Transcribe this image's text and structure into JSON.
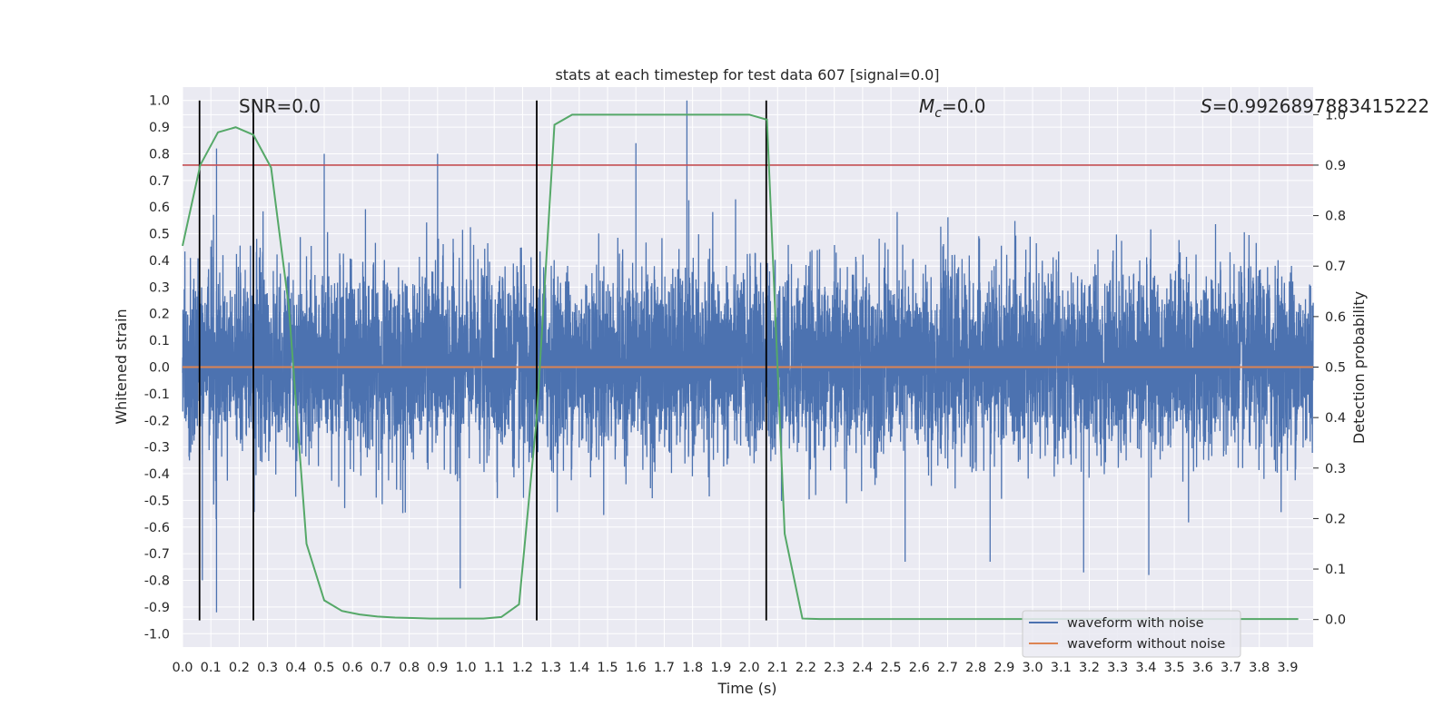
{
  "chart_data": {
    "type": "line",
    "title": "stats at each timestep for test data 607 [signal=0.0]",
    "xlabel": "Time (s)",
    "ylabel": "Whitened strain",
    "y2label": "Detection probability",
    "xlim": [
      0.0,
      3.99
    ],
    "ylim": [
      -1.05,
      1.05
    ],
    "y2lim": [
      -0.0545,
      1.0545
    ],
    "x_ticks": [
      "0.0",
      "0.1",
      "0.2",
      "0.3",
      "0.4",
      "0.5",
      "0.6",
      "0.7",
      "0.8",
      "0.9",
      "1.0",
      "1.1",
      "1.2",
      "1.3",
      "1.4",
      "1.5",
      "1.6",
      "1.7",
      "1.8",
      "1.9",
      "2.0",
      "2.1",
      "2.2",
      "2.3",
      "2.4",
      "2.5",
      "2.6",
      "2.7",
      "2.8",
      "2.9",
      "3.0",
      "3.1",
      "3.2",
      "3.3",
      "3.4",
      "3.5",
      "3.6",
      "3.7",
      "3.8",
      "3.9"
    ],
    "y_ticks": [
      "1.0",
      "0.9",
      "0.8",
      "0.7",
      "0.6",
      "0.5",
      "0.4",
      "0.3",
      "0.2",
      "0.1",
      "0.0",
      "-0.1",
      "-0.2",
      "-0.3",
      "-0.4",
      "-0.5",
      "-0.6",
      "-0.7",
      "-0.8",
      "-0.9",
      "-1.0"
    ],
    "y2_ticks": [
      "1.0",
      "0.9",
      "0.8",
      "0.7",
      "0.6",
      "0.5",
      "0.4",
      "0.3",
      "0.2",
      "0.1",
      "0.0"
    ],
    "annotations": {
      "snr": "SNR=0.0",
      "mc": "$M_c$=0.0",
      "mc_main": "M",
      "mc_sub": "c",
      "mc_rest": "=0.0",
      "s_sym": "S",
      "s_val": "=0.9926897883415222"
    },
    "grid": true,
    "legend_position": "lower-right",
    "series": [
      {
        "name": "waveform with noise",
        "color": "#4c72b0",
        "kind": "noise",
        "sample_rate": 2048,
        "peak_envelope": [
          [
            0.0,
            0.55
          ],
          [
            0.05,
            0.55
          ],
          [
            0.1,
            0.6
          ],
          [
            0.12,
            0.82
          ],
          [
            0.15,
            0.5
          ],
          [
            0.2,
            0.45
          ],
          [
            0.25,
            0.6
          ],
          [
            0.3,
            0.72
          ],
          [
            0.35,
            0.68
          ],
          [
            0.4,
            0.55
          ],
          [
            0.45,
            0.58
          ],
          [
            0.5,
            0.8
          ],
          [
            0.55,
            0.55
          ],
          [
            0.6,
            0.72
          ],
          [
            0.65,
            0.6
          ],
          [
            0.7,
            0.68
          ],
          [
            0.75,
            0.75
          ],
          [
            0.8,
            0.6
          ],
          [
            0.85,
            0.5
          ],
          [
            0.9,
            0.8
          ],
          [
            0.95,
            0.55
          ],
          [
            1.0,
            0.6
          ],
          [
            1.05,
            0.6
          ],
          [
            1.1,
            0.55
          ],
          [
            1.15,
            0.5
          ],
          [
            1.2,
            0.45
          ],
          [
            1.25,
            0.42
          ],
          [
            1.3,
            0.6
          ],
          [
            1.35,
            0.62
          ],
          [
            1.4,
            0.65
          ],
          [
            1.45,
            0.68
          ],
          [
            1.5,
            0.62
          ],
          [
            1.55,
            0.7
          ],
          [
            1.6,
            0.84
          ],
          [
            1.65,
            0.6
          ],
          [
            1.7,
            0.72
          ],
          [
            1.75,
            0.7
          ],
          [
            1.78,
            1.0
          ],
          [
            1.8,
            0.72
          ],
          [
            1.85,
            0.7
          ],
          [
            1.9,
            0.66
          ],
          [
            1.95,
            0.72
          ],
          [
            2.0,
            0.68
          ],
          [
            2.05,
            0.75
          ],
          [
            2.1,
            0.7
          ],
          [
            2.15,
            0.68
          ],
          [
            2.2,
            0.65
          ],
          [
            2.25,
            0.62
          ],
          [
            2.3,
            0.6
          ],
          [
            2.4,
            0.62
          ],
          [
            2.5,
            0.65
          ],
          [
            2.6,
            0.58
          ],
          [
            2.7,
            0.7
          ],
          [
            2.8,
            0.62
          ],
          [
            2.9,
            0.55
          ],
          [
            3.0,
            0.62
          ],
          [
            3.1,
            0.68
          ],
          [
            3.2,
            0.6
          ],
          [
            3.3,
            0.58
          ],
          [
            3.4,
            0.66
          ],
          [
            3.5,
            0.7
          ],
          [
            3.6,
            0.62
          ],
          [
            3.7,
            0.72
          ],
          [
            3.8,
            0.6
          ],
          [
            3.9,
            0.62
          ],
          [
            3.99,
            0.5
          ]
        ],
        "trough_envelope": [
          [
            0.0,
            -0.35
          ],
          [
            0.05,
            -0.4
          ],
          [
            0.07,
            -0.8
          ],
          [
            0.1,
            -0.75
          ],
          [
            0.12,
            -0.92
          ],
          [
            0.15,
            -0.72
          ],
          [
            0.2,
            -0.5
          ],
          [
            0.25,
            -0.55
          ],
          [
            0.3,
            -0.62
          ],
          [
            0.35,
            -0.58
          ],
          [
            0.4,
            -0.6
          ],
          [
            0.45,
            -0.72
          ],
          [
            0.5,
            -0.55
          ],
          [
            0.55,
            -0.58
          ],
          [
            0.6,
            -0.55
          ],
          [
            0.65,
            -0.5
          ],
          [
            0.7,
            -0.55
          ],
          [
            0.75,
            -0.6
          ],
          [
            0.8,
            -0.58
          ],
          [
            0.85,
            -0.55
          ],
          [
            0.9,
            -0.65
          ],
          [
            0.98,
            -0.83
          ],
          [
            1.0,
            -0.55
          ],
          [
            1.05,
            -0.55
          ],
          [
            1.1,
            -0.52
          ],
          [
            1.15,
            -0.5
          ],
          [
            1.2,
            -0.48
          ],
          [
            1.25,
            -0.66
          ],
          [
            1.3,
            -0.58
          ],
          [
            1.35,
            -0.6
          ],
          [
            1.4,
            -0.62
          ],
          [
            1.45,
            -0.58
          ],
          [
            1.5,
            -0.6
          ],
          [
            1.55,
            -0.62
          ],
          [
            1.6,
            -0.58
          ],
          [
            1.65,
            -0.6
          ],
          [
            1.7,
            -0.62
          ],
          [
            1.75,
            -0.6
          ],
          [
            1.8,
            -0.58
          ],
          [
            1.85,
            -0.62
          ],
          [
            1.9,
            -0.6
          ],
          [
            1.95,
            -0.65
          ],
          [
            2.0,
            -0.62
          ],
          [
            2.05,
            -0.6
          ],
          [
            2.1,
            -0.58
          ],
          [
            2.2,
            -0.62
          ],
          [
            2.3,
            -0.6
          ],
          [
            2.4,
            -0.58
          ],
          [
            2.5,
            -0.62
          ],
          [
            2.55,
            -0.73
          ],
          [
            2.6,
            -0.62
          ],
          [
            2.7,
            -0.6
          ],
          [
            2.8,
            -0.62
          ],
          [
            2.85,
            -0.73
          ],
          [
            2.9,
            -0.58
          ],
          [
            3.0,
            -0.62
          ],
          [
            3.1,
            -0.6
          ],
          [
            3.18,
            -0.77
          ],
          [
            3.2,
            -0.6
          ],
          [
            3.3,
            -0.62
          ],
          [
            3.41,
            -0.78
          ],
          [
            3.5,
            -0.62
          ],
          [
            3.6,
            -0.6
          ],
          [
            3.7,
            -0.62
          ],
          [
            3.8,
            -0.58
          ],
          [
            3.9,
            -0.6
          ],
          [
            3.99,
            -0.4
          ]
        ]
      },
      {
        "name": "waveform without noise",
        "color": "#dd8452",
        "x": [
          0.0,
          3.99
        ],
        "y": [
          0.0,
          0.0
        ]
      }
    ],
    "detection_probability": {
      "color": "#55a868",
      "axis": "right",
      "x": [
        0.0,
        0.0625,
        0.125,
        0.1875,
        0.25,
        0.3125,
        0.375,
        0.4375,
        0.5,
        0.5625,
        0.625,
        0.6875,
        0.75,
        0.8125,
        0.875,
        0.9375,
        1.0,
        1.0625,
        1.125,
        1.1875,
        1.25,
        1.3125,
        1.375,
        1.4375,
        1.5,
        1.5625,
        1.625,
        1.6875,
        1.75,
        1.8125,
        1.875,
        1.9375,
        2.0,
        2.0625,
        2.125,
        2.1875,
        2.25,
        2.3125,
        2.375,
        2.4375,
        2.5,
        2.5625,
        2.625,
        2.6875,
        2.75,
        2.8125,
        2.875,
        2.9375,
        3.0,
        3.0625,
        3.125,
        3.1875,
        3.25,
        3.3125,
        3.375,
        3.4375,
        3.5,
        3.5625,
        3.625,
        3.6875,
        3.75,
        3.8125,
        3.875,
        3.9375
      ],
      "y": [
        0.74,
        0.9,
        0.965,
        0.975,
        0.96,
        0.895,
        0.62,
        0.15,
        0.038,
        0.017,
        0.01,
        0.006,
        0.004,
        0.003,
        0.002,
        0.002,
        0.002,
        0.002,
        0.005,
        0.03,
        0.4,
        0.98,
        1.0,
        1.0,
        1.0,
        1.0,
        1.0,
        1.0,
        1.0,
        1.0,
        1.0,
        1.0,
        1.0,
        0.99,
        0.17,
        0.002,
        0.001,
        0.001,
        0.001,
        0.001,
        0.001,
        0.001,
        0.001,
        0.001,
        0.001,
        0.001,
        0.001,
        0.001,
        0.001,
        0.001,
        0.001,
        0.001,
        0.001,
        0.001,
        0.001,
        0.001,
        0.001,
        0.001,
        0.001,
        0.001,
        0.001,
        0.001,
        0.001,
        0.001
      ]
    },
    "threshold": {
      "color": "#c44e52",
      "value": 0.9,
      "axis": "right"
    },
    "vertical_markers": {
      "color": "#000000",
      "x": [
        0.06,
        0.25,
        1.25,
        2.06
      ],
      "y_from": -0.95,
      "y_to": 1.0
    },
    "colors": {
      "panel_bg": "#eaeaf2",
      "grid": "#ffffff",
      "text": "#262626"
    }
  }
}
